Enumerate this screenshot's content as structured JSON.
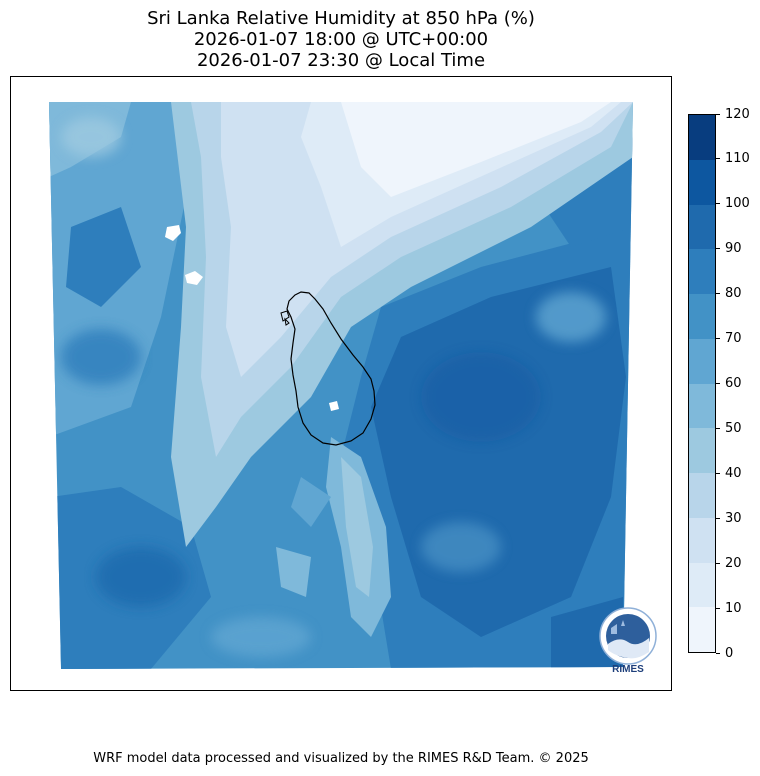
{
  "title": {
    "line1": "Sri Lanka Relative Humidity at 850 hPa (%)",
    "line2": "2026-01-07 18:00 @ UTC+00:00",
    "line3": "2026-01-07 23:30 @ Local Time"
  },
  "colorbar": {
    "ticks": [
      "0",
      "10",
      "20",
      "30",
      "40",
      "50",
      "60",
      "70",
      "80",
      "90",
      "100",
      "110",
      "120"
    ],
    "levels": [
      {
        "from": 0,
        "to": 10,
        "color": "#eff5fc"
      },
      {
        "from": 10,
        "to": 20,
        "color": "#deebf7"
      },
      {
        "from": 20,
        "to": 30,
        "color": "#cfe1f2"
      },
      {
        "from": 30,
        "to": 40,
        "color": "#b8d5ea"
      },
      {
        "from": 40,
        "to": 50,
        "color": "#9dc9e0"
      },
      {
        "from": 50,
        "to": 60,
        "color": "#7fb9da"
      },
      {
        "from": 60,
        "to": 70,
        "color": "#60a6d2"
      },
      {
        "from": 70,
        "to": 80,
        "color": "#4292c6"
      },
      {
        "from": 80,
        "to": 90,
        "color": "#2e7ebc"
      },
      {
        "from": 90,
        "to": 100,
        "color": "#1f6aad"
      },
      {
        "from": 100,
        "to": 110,
        "color": "#0d57a0"
      },
      {
        "from": 110,
        "to": 120,
        "color": "#083d7f"
      }
    ]
  },
  "logo": {
    "text": "RIMES"
  },
  "footer": "WRF model data processed and visualized by the RIMES R&D Team. © 2025"
}
